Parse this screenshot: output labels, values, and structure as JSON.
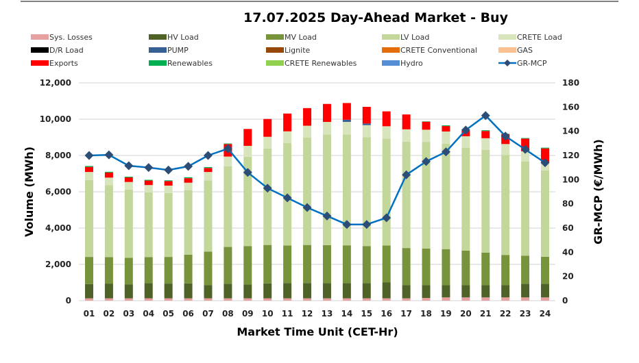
{
  "chart_data": {
    "type": "bar",
    "title": "17.07.2025  Day-Ahead Market - Buy",
    "xlabel": "Market Time Unit (CET-Hr)",
    "ylabel": "Volume (MWh)",
    "y2label": "GR-MCP (€/MWh)",
    "ylim": [
      0,
      12000
    ],
    "y2lim": [
      0,
      180
    ],
    "yticks": [
      "0",
      "2,000",
      "4,000",
      "6,000",
      "8,000",
      "10,000",
      "12,000"
    ],
    "y2ticks": [
      "0",
      "20",
      "40",
      "60",
      "80",
      "100",
      "120",
      "140",
      "160",
      "180"
    ],
    "grid": true,
    "legend_position": "top",
    "categories": [
      "01",
      "02",
      "03",
      "04",
      "05",
      "06",
      "07",
      "08",
      "09",
      "10",
      "11",
      "12",
      "13",
      "14",
      "15",
      "16",
      "17",
      "18",
      "19",
      "20",
      "21",
      "22",
      "23",
      "24"
    ],
    "series": [
      {
        "name": "Sys. Losses",
        "color": "#e6a0a0",
        "values": [
          130,
          130,
          130,
          130,
          130,
          130,
          130,
          130,
          130,
          130,
          130,
          130,
          130,
          130,
          130,
          130,
          130,
          150,
          180,
          180,
          180,
          180,
          180,
          180
        ]
      },
      {
        "name": "HV Load",
        "color": "#4f6228",
        "values": [
          780,
          810,
          770,
          840,
          810,
          820,
          720,
          800,
          760,
          820,
          840,
          840,
          840,
          840,
          840,
          870,
          720,
          700,
          670,
          670,
          670,
          670,
          750,
          750
        ]
      },
      {
        "name": "MV Load",
        "color": "#77933c",
        "values": [
          1500,
          1460,
          1460,
          1430,
          1470,
          1580,
          1850,
          2030,
          2120,
          2120,
          2070,
          2100,
          2090,
          2080,
          2040,
          2040,
          2050,
          2020,
          1990,
          1910,
          1800,
          1670,
          1550,
          1490
        ]
      },
      {
        "name": "LV Load",
        "color": "#c4d79b",
        "values": [
          4240,
          3960,
          3760,
          3570,
          3520,
          3560,
          3920,
          4440,
          4920,
          5310,
          5640,
          5910,
          6100,
          6110,
          6000,
          5890,
          5860,
          5880,
          5810,
          5660,
          5660,
          5510,
          5190,
          4760
        ]
      },
      {
        "name": "CRETE Load",
        "color": "#d8e4bc",
        "values": [
          440,
          420,
          420,
          400,
          410,
          410,
          470,
          540,
          600,
          650,
          650,
          660,
          690,
          690,
          660,
          680,
          680,
          670,
          670,
          640,
          640,
          600,
          560,
          450
        ]
      },
      {
        "name": "D/R Load",
        "color": "#000000",
        "values": [
          0,
          0,
          0,
          0,
          0,
          0,
          0,
          0,
          0,
          0,
          0,
          0,
          0,
          0,
          0,
          0,
          0,
          0,
          0,
          0,
          0,
          0,
          0,
          0
        ]
      },
      {
        "name": "PUMP",
        "color": "#376092",
        "values": [
          0,
          0,
          0,
          0,
          0,
          0,
          0,
          0,
          0,
          0,
          0,
          0,
          0,
          120,
          90,
          0,
          0,
          0,
          0,
          0,
          0,
          0,
          0,
          0
        ]
      },
      {
        "name": "Lignite",
        "color": "#974706",
        "values": [
          0,
          0,
          0,
          0,
          0,
          0,
          0,
          0,
          0,
          0,
          0,
          0,
          0,
          0,
          0,
          0,
          0,
          0,
          0,
          0,
          0,
          0,
          0,
          0
        ]
      },
      {
        "name": "CRETE Conventional",
        "color": "#e46c0a",
        "values": [
          0,
          0,
          0,
          0,
          0,
          0,
          0,
          0,
          0,
          0,
          0,
          0,
          0,
          0,
          0,
          0,
          0,
          0,
          0,
          0,
          0,
          0,
          0,
          0
        ]
      },
      {
        "name": "GAS",
        "color": "#fac090",
        "values": [
          0,
          0,
          0,
          0,
          0,
          0,
          0,
          0,
          0,
          0,
          0,
          0,
          0,
          0,
          0,
          0,
          0,
          0,
          0,
          0,
          0,
          0,
          0,
          0
        ]
      },
      {
        "name": "Exports",
        "color": "#ff0000",
        "values": [
          280,
          280,
          250,
          250,
          250,
          250,
          220,
          690,
          930,
          980,
          980,
          970,
          990,
          920,
          920,
          820,
          820,
          440,
          300,
          300,
          400,
          550,
          700,
          760
        ]
      },
      {
        "name": "Renewables",
        "color": "#00b050",
        "values": [
          50,
          40,
          40,
          40,
          40,
          50,
          50,
          30,
          0,
          0,
          0,
          0,
          0,
          0,
          0,
          0,
          0,
          20,
          40,
          0,
          40,
          20,
          30,
          40
        ]
      },
      {
        "name": "CRETE Renewables",
        "color": "#92d050",
        "values": [
          0,
          0,
          0,
          0,
          0,
          0,
          0,
          0,
          0,
          0,
          0,
          0,
          0,
          0,
          0,
          0,
          0,
          0,
          0,
          0,
          0,
          0,
          0,
          0
        ]
      },
      {
        "name": "Hydro",
        "color": "#558ed5",
        "values": [
          0,
          0,
          0,
          0,
          0,
          0,
          0,
          0,
          0,
          0,
          0,
          0,
          0,
          0,
          0,
          0,
          0,
          0,
          0,
          0,
          0,
          0,
          0,
          0
        ]
      }
    ],
    "line_series": {
      "name": "GR-MCP",
      "color": "#0070c0",
      "marker_color": "#2c4d75",
      "axis": "right",
      "values": [
        120,
        120.5,
        111.5,
        110,
        108,
        111,
        120,
        125.6,
        106,
        93,
        85,
        77,
        70,
        63,
        63,
        68.5,
        104,
        115,
        123,
        141,
        153,
        136,
        125,
        114
      ]
    }
  }
}
